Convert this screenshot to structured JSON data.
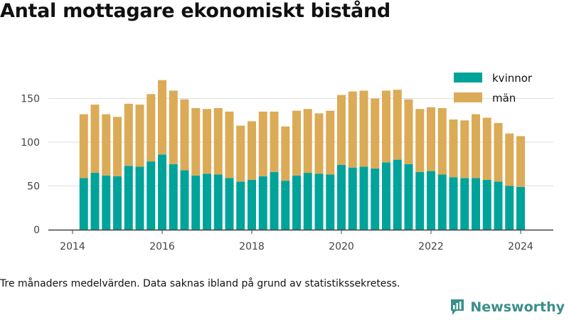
{
  "title": "Antal mottagare ekonomiskt bistånd",
  "footnote": "Tre månaders medelvärden. Data saknas ibland på grund av statistikssekretess.",
  "brand": "Newsworthy",
  "colors": {
    "kvinnor": "#00a39a",
    "man": "#dbab57",
    "grid": "#dddddd",
    "axis": "#444444"
  },
  "chart_data": {
    "type": "bar",
    "stacked": true,
    "x_start": "2014-04",
    "x_step_months": 3,
    "x_ticks": [
      "2014",
      "2016",
      "2018",
      "2020",
      "2022",
      "2024"
    ],
    "y_ticks": [
      "0",
      "50",
      "100",
      "150"
    ],
    "ylim": [
      0,
      175
    ],
    "legend_position": "top-right",
    "grid": "horizontal",
    "series": [
      {
        "name": "kvinnor",
        "values": [
          59,
          65,
          62,
          61,
          73,
          72,
          78,
          86,
          75,
          68,
          62,
          64,
          63,
          59,
          55,
          57,
          61,
          66,
          56,
          62,
          65,
          64,
          63,
          74,
          71,
          72,
          70,
          77,
          80,
          75,
          66,
          67,
          63,
          60,
          59,
          59,
          57,
          55,
          50,
          49
        ]
      },
      {
        "name": "män",
        "values": [
          73,
          78,
          70,
          68,
          71,
          71,
          77,
          85,
          84,
          81,
          77,
          74,
          76,
          76,
          64,
          67,
          74,
          69,
          62,
          74,
          73,
          69,
          73,
          80,
          87,
          87,
          80,
          82,
          80,
          74,
          72,
          73,
          76,
          66,
          66,
          73,
          71,
          67,
          60,
          58
        ]
      }
    ]
  }
}
